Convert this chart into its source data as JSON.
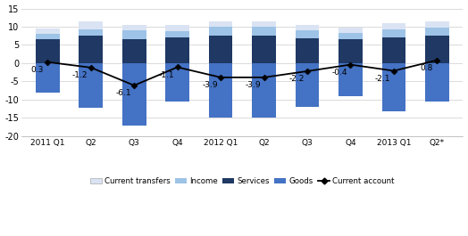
{
  "categories": [
    "2011 Q1",
    "Q2",
    "Q3",
    "Q4",
    "2012 Q1",
    "Q2",
    "Q3",
    "Q4",
    "2013 Q1",
    "Q2*"
  ],
  "current_account": [
    0.3,
    -1.2,
    -6.1,
    -1.1,
    -3.9,
    -3.9,
    -2.2,
    -0.4,
    -2.1,
    0.8
  ],
  "goods": [
    -8.2,
    -12.3,
    -17.2,
    -10.5,
    -15.0,
    -15.0,
    -12.0,
    -9.0,
    -13.2,
    -10.5
  ],
  "services": [
    6.5,
    7.5,
    6.5,
    7.0,
    7.5,
    7.5,
    6.8,
    6.5,
    7.0,
    7.5
  ],
  "income": [
    1.5,
    1.8,
    2.5,
    1.8,
    2.5,
    2.5,
    2.2,
    1.8,
    2.2,
    2.2
  ],
  "transfers": [
    1.5,
    2.2,
    1.5,
    1.8,
    1.5,
    1.5,
    1.5,
    1.5,
    1.8,
    1.8
  ],
  "color_goods": "#4472C4",
  "color_services": "#1F3864",
  "color_income": "#9DC3E6",
  "color_transfers": "#DAE3F3",
  "color_line": "#000000",
  "ylim": [
    -20,
    15
  ],
  "yticks": [
    -20,
    -15,
    -10,
    -5,
    0,
    5,
    10,
    15
  ],
  "bar_width": 0.55
}
